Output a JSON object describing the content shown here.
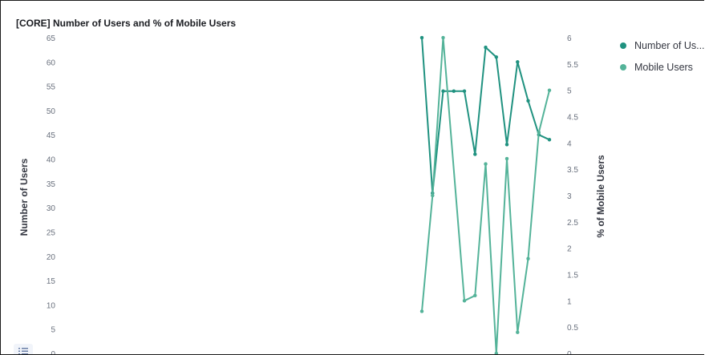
{
  "panel": {
    "title": "[CORE] Number of Users and % of Mobile Users"
  },
  "icons": {
    "legend_toggle": "list-icon"
  },
  "chart_data": {
    "type": "line",
    "x_index_range": [
      0,
      26
    ],
    "series": [
      {
        "name": "Number of Users",
        "legend_label": "Number of Us...",
        "axis": "left",
        "color": "#209280",
        "points": [
          {
            "x": 17,
            "y": 65
          },
          {
            "x": 18,
            "y": 33
          },
          {
            "x": 19,
            "y": 54
          },
          {
            "x": 20,
            "y": 54
          },
          {
            "x": 21,
            "y": 54
          },
          {
            "x": 22,
            "y": 41
          },
          {
            "x": 23,
            "y": 63
          },
          {
            "x": 24,
            "y": 61
          },
          {
            "x": 25,
            "y": 43
          },
          {
            "x": 26,
            "y": 60
          },
          {
            "x": 27,
            "y": 52
          },
          {
            "x": 28,
            "y": 45
          },
          {
            "x": 29,
            "y": 44
          }
        ]
      },
      {
        "name": "Mobile Users",
        "legend_label": "Mobile Users",
        "axis": "right",
        "color": "#54b399",
        "points": [
          {
            "x": 17,
            "y": 0.8
          },
          {
            "x": 18,
            "y": 3.0
          },
          {
            "x": 19,
            "y": 6.0
          },
          {
            "x": 21,
            "y": 1.0
          },
          {
            "x": 22,
            "y": 1.1
          },
          {
            "x": 23,
            "y": 3.6
          },
          {
            "x": 24,
            "y": 0.0
          },
          {
            "x": 25,
            "y": 3.7
          },
          {
            "x": 26,
            "y": 0.4
          },
          {
            "x": 27,
            "y": 1.8
          },
          {
            "x": 28,
            "y": 4.2
          },
          {
            "x": 29,
            "y": 5.0
          }
        ]
      }
    ],
    "y_left": {
      "label": "Number of Users",
      "range": [
        0,
        65
      ],
      "ticks": [
        "0",
        "5",
        "10",
        "15",
        "20",
        "25",
        "30",
        "35",
        "40",
        "45",
        "50",
        "55",
        "60",
        "65"
      ]
    },
    "y_right": {
      "label": "% of Mobile Users",
      "range": [
        0,
        6
      ],
      "ticks": [
        "0",
        "0.5",
        "1",
        "1.5",
        "2",
        "2.5",
        "3",
        "3.5",
        "4",
        "4.5",
        "5",
        "5.5",
        "6"
      ]
    },
    "legend_position": "top-right",
    "grid": false
  }
}
